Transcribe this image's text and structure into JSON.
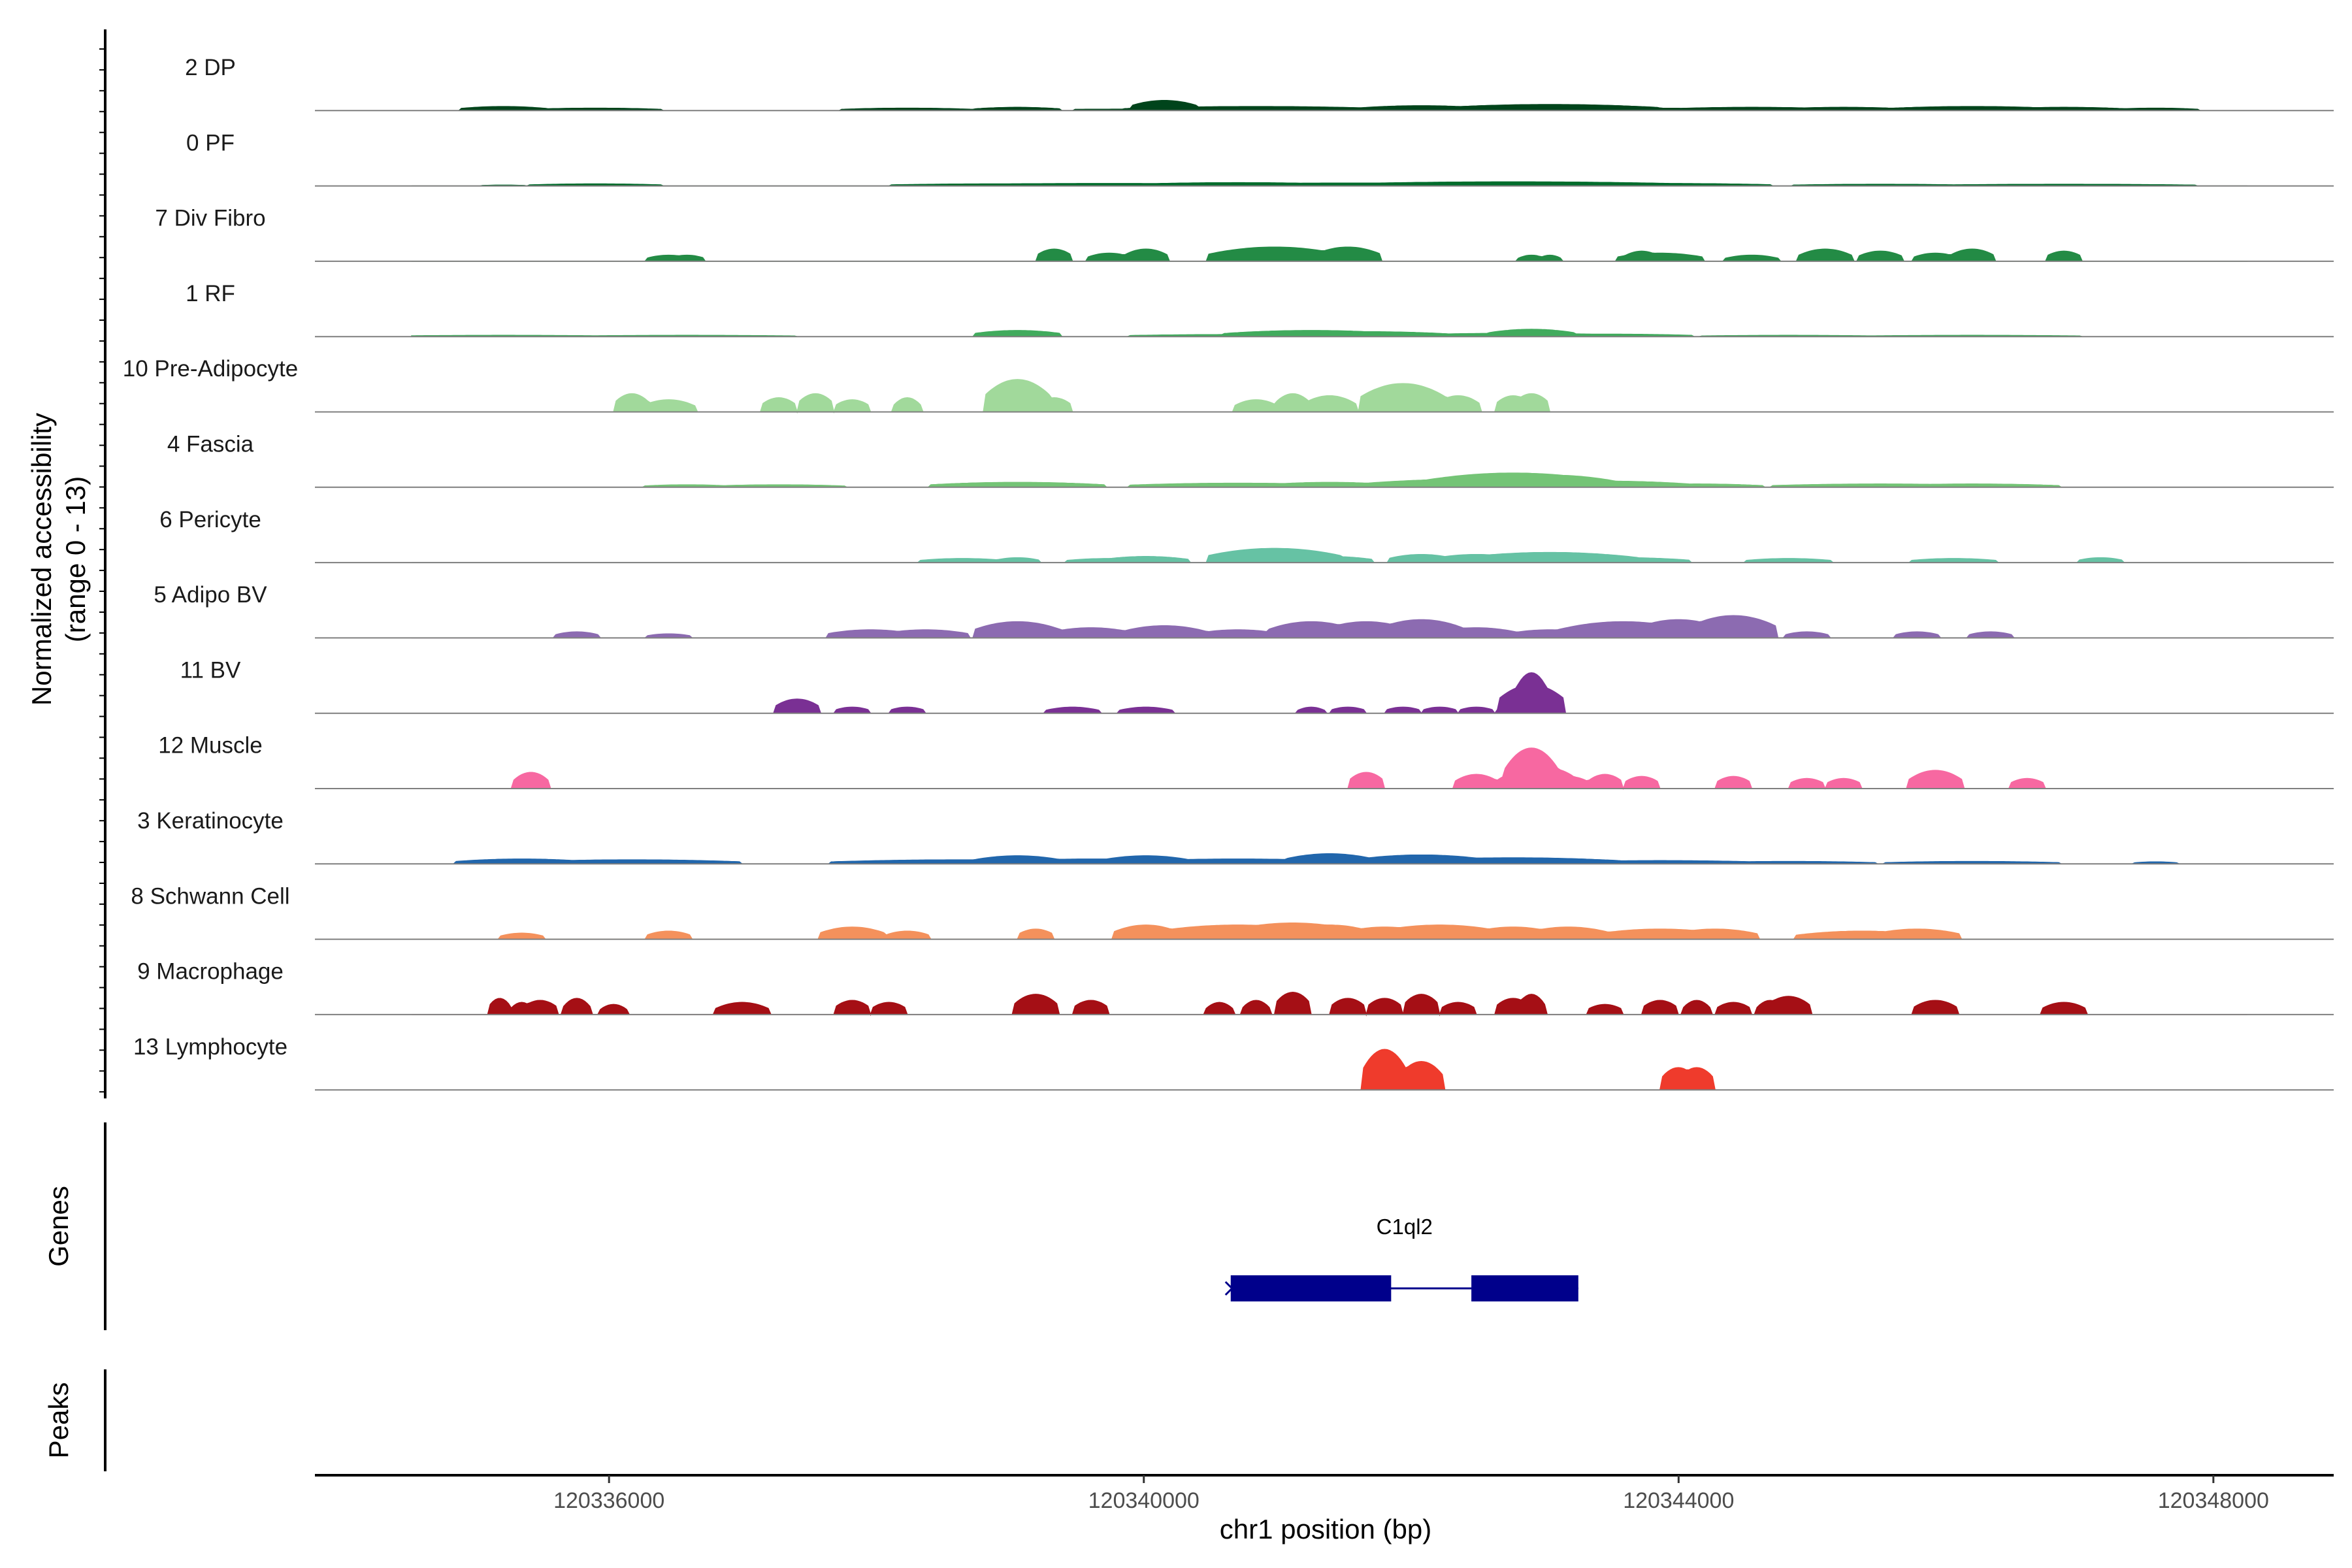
{
  "chart_data": {
    "type": "area",
    "chromosome": "chr1",
    "xlabel": "chr1 position (bp)",
    "ylabel_line1": "Normalized accessibility",
    "ylabel_line2": "(range 0 - 13)",
    "genes_label": "Genes",
    "peaks_label": "Peaks",
    "xlim": [
      120333800,
      120348900
    ],
    "xticks": [
      120336000,
      120340000,
      120344000,
      120348000
    ],
    "xtick_labels": [
      "120336000",
      "120340000",
      "120344000",
      "120348000"
    ],
    "y_range": [
      0,
      13
    ],
    "grid": false,
    "tracks": [
      {
        "name": "2 DP",
        "color": "#00441b"
      },
      {
        "name": "0 PF",
        "color": "#006d2c"
      },
      {
        "name": "7 Div Fibro",
        "color": "#238b45"
      },
      {
        "name": "1 RF",
        "color": "#41ab5d"
      },
      {
        "name": "10 Pre-Adipocyte",
        "color": "#a1d99b"
      },
      {
        "name": "4 Fascia",
        "color": "#74c476"
      },
      {
        "name": "6 Pericyte",
        "color": "#66c2a4"
      },
      {
        "name": "5 Adipo BV",
        "color": "#8c6bb1"
      },
      {
        "name": "11 BV",
        "color": "#7a3094"
      },
      {
        "name": "12 Muscle",
        "color": "#f768a1"
      },
      {
        "name": "3 Keratinocyte",
        "color": "#2166ac"
      },
      {
        "name": "8 Schwann Cell",
        "color": "#f4915c"
      },
      {
        "name": "9 Macrophage",
        "color": "#a50f15"
      },
      {
        "name": "13 Lymphocyte",
        "color": "#ef3b2c"
      }
    ],
    "genes": [
      {
        "name": "C1ql2",
        "start": 120340650,
        "end": 120343250,
        "strand": "-",
        "color": "#00008b",
        "exons": [
          [
            120340650,
            120341850
          ],
          [
            120342450,
            120343250
          ]
        ]
      }
    ]
  }
}
